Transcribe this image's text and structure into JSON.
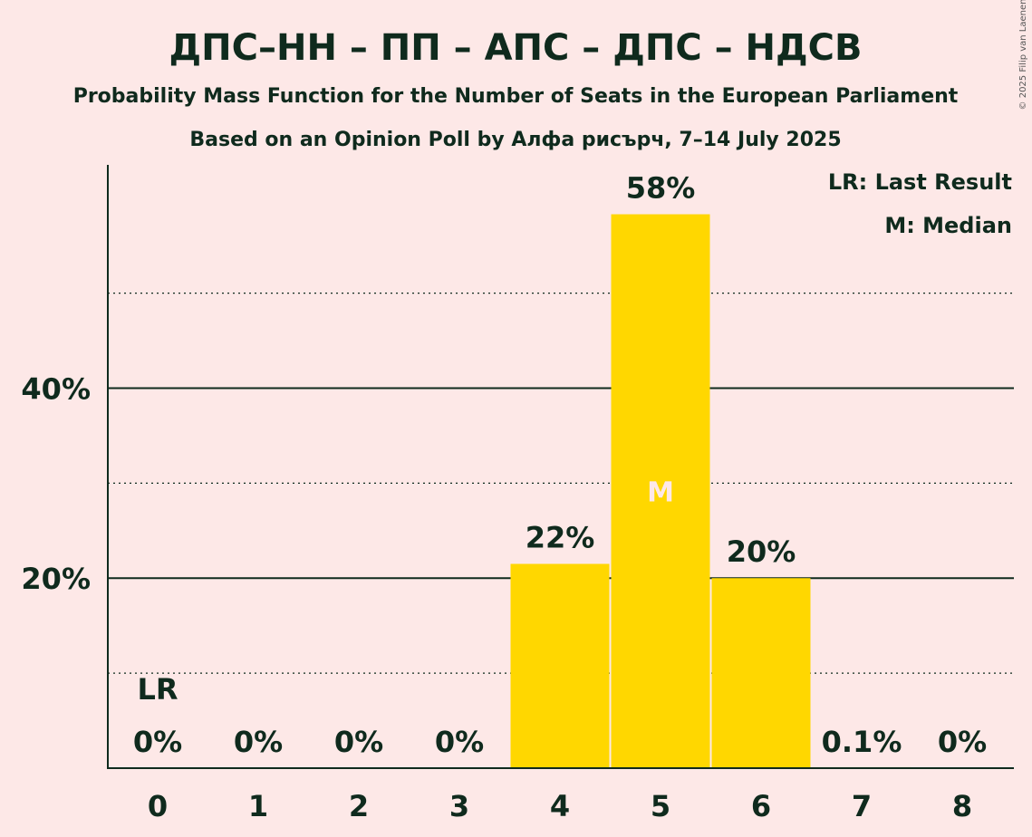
{
  "title": "ДПС–НН – ПП – АПС – ДПС – НДСВ",
  "subtitle1": "Probability Mass Function for the Number of Seats in the European Parliament",
  "subtitle2": "Based on an Opinion Poll by Алфа рисърч, 7–14 July 2025",
  "copyright": "© 2025 Filip van Laenen",
  "legend": {
    "lr": "LR: Last Result",
    "m": "M: Median"
  },
  "colors": {
    "bar": "#FFD700",
    "background": "#FDE8E7",
    "text": "#0f2a1d"
  },
  "chart_data": {
    "type": "bar",
    "categories": [
      "0",
      "1",
      "2",
      "3",
      "4",
      "5",
      "6",
      "7",
      "8"
    ],
    "values": [
      0,
      0,
      0,
      0,
      21.5,
      58.3,
      20.0,
      0.1,
      0
    ],
    "labels": [
      "0%",
      "0%",
      "0%",
      "0%",
      "22%",
      "58%",
      "20%",
      "0.1%",
      "0%"
    ],
    "ylim": [
      0,
      63.5
    ],
    "yticks": [
      {
        "value": 20,
        "label": "20%"
      },
      {
        "value": 40,
        "label": "40%"
      }
    ],
    "ygrid_dotted": [
      10,
      30,
      50
    ],
    "last_result": {
      "category": "0",
      "label": "LR"
    },
    "median": {
      "category": "5",
      "label": "M"
    },
    "legend_position": "top-right"
  }
}
